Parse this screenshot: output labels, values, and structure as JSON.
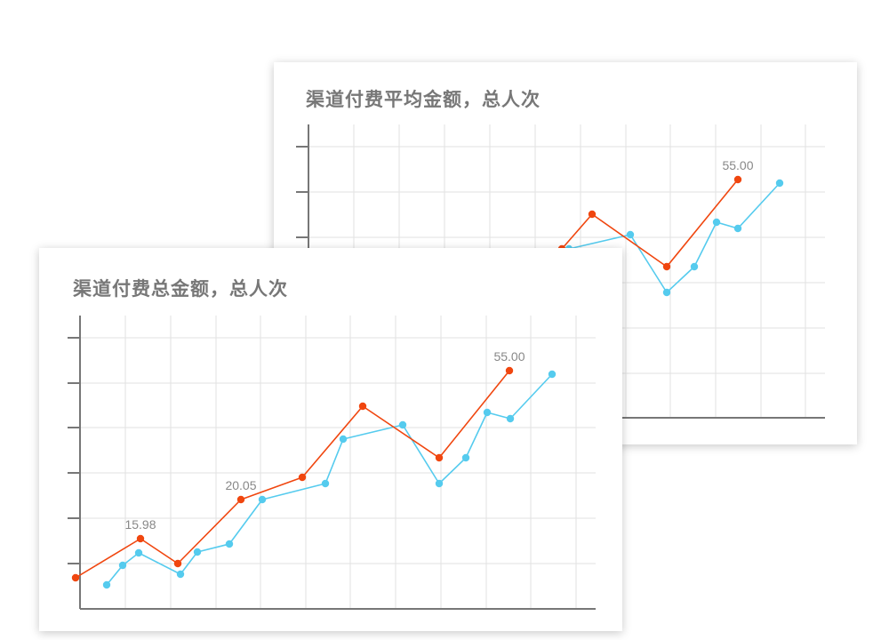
{
  "colors": {
    "orange": "#f0460f",
    "cyan": "#55cbee",
    "grid": "#e2e2e2",
    "axis": "#777777",
    "title": "#777777",
    "label": "#888888"
  },
  "chart_data": [
    {
      "type": "line",
      "title": "渠道付费平均金额，总人次",
      "grid": true,
      "series": [
        {
          "color": "#55cbee",
          "points": [
            [
              616,
              350
            ],
            [
              640,
              280
            ],
            [
              709,
              264
            ],
            [
              750,
              329
            ],
            [
              781,
              300
            ],
            [
              806,
              250
            ],
            [
              830,
              257
            ],
            [
              877,
              206
            ]
          ]
        },
        {
          "color": "#f0460f",
          "points": [
            [
              632,
              280
            ],
            [
              666,
              241
            ],
            [
              750,
              300
            ],
            [
              830,
              202
            ]
          ],
          "labels": [
            {
              "index": 3,
              "text": "55.00"
            }
          ]
        }
      ]
    },
    {
      "type": "line",
      "title": "渠道付费总金额，总人次",
      "grid": true,
      "series": [
        {
          "color": "#55cbee",
          "points": [
            [
              120,
              658
            ],
            [
              138,
              636
            ],
            [
              156,
              622
            ],
            [
              203,
              646
            ],
            [
              222,
              621
            ],
            [
              258,
              612
            ],
            [
              295,
              562
            ],
            [
              366,
              544
            ],
            [
              386,
              494
            ],
            [
              453,
              478
            ],
            [
              494,
              544
            ],
            [
              524,
              515
            ],
            [
              548,
              464
            ],
            [
              574,
              471
            ],
            [
              621,
              421
            ]
          ]
        },
        {
          "color": "#f0460f",
          "points": [
            [
              85,
              650
            ],
            [
              158,
              606
            ],
            [
              200,
              634
            ],
            [
              271,
              562
            ],
            [
              340,
              537
            ],
            [
              408,
              457
            ],
            [
              494,
              515
            ],
            [
              573,
              417
            ]
          ],
          "labels": [
            {
              "index": 1,
              "text": "15.98"
            },
            {
              "index": 3,
              "text": "20.05"
            },
            {
              "index": 7,
              "text": "55.00"
            }
          ]
        }
      ]
    }
  ]
}
